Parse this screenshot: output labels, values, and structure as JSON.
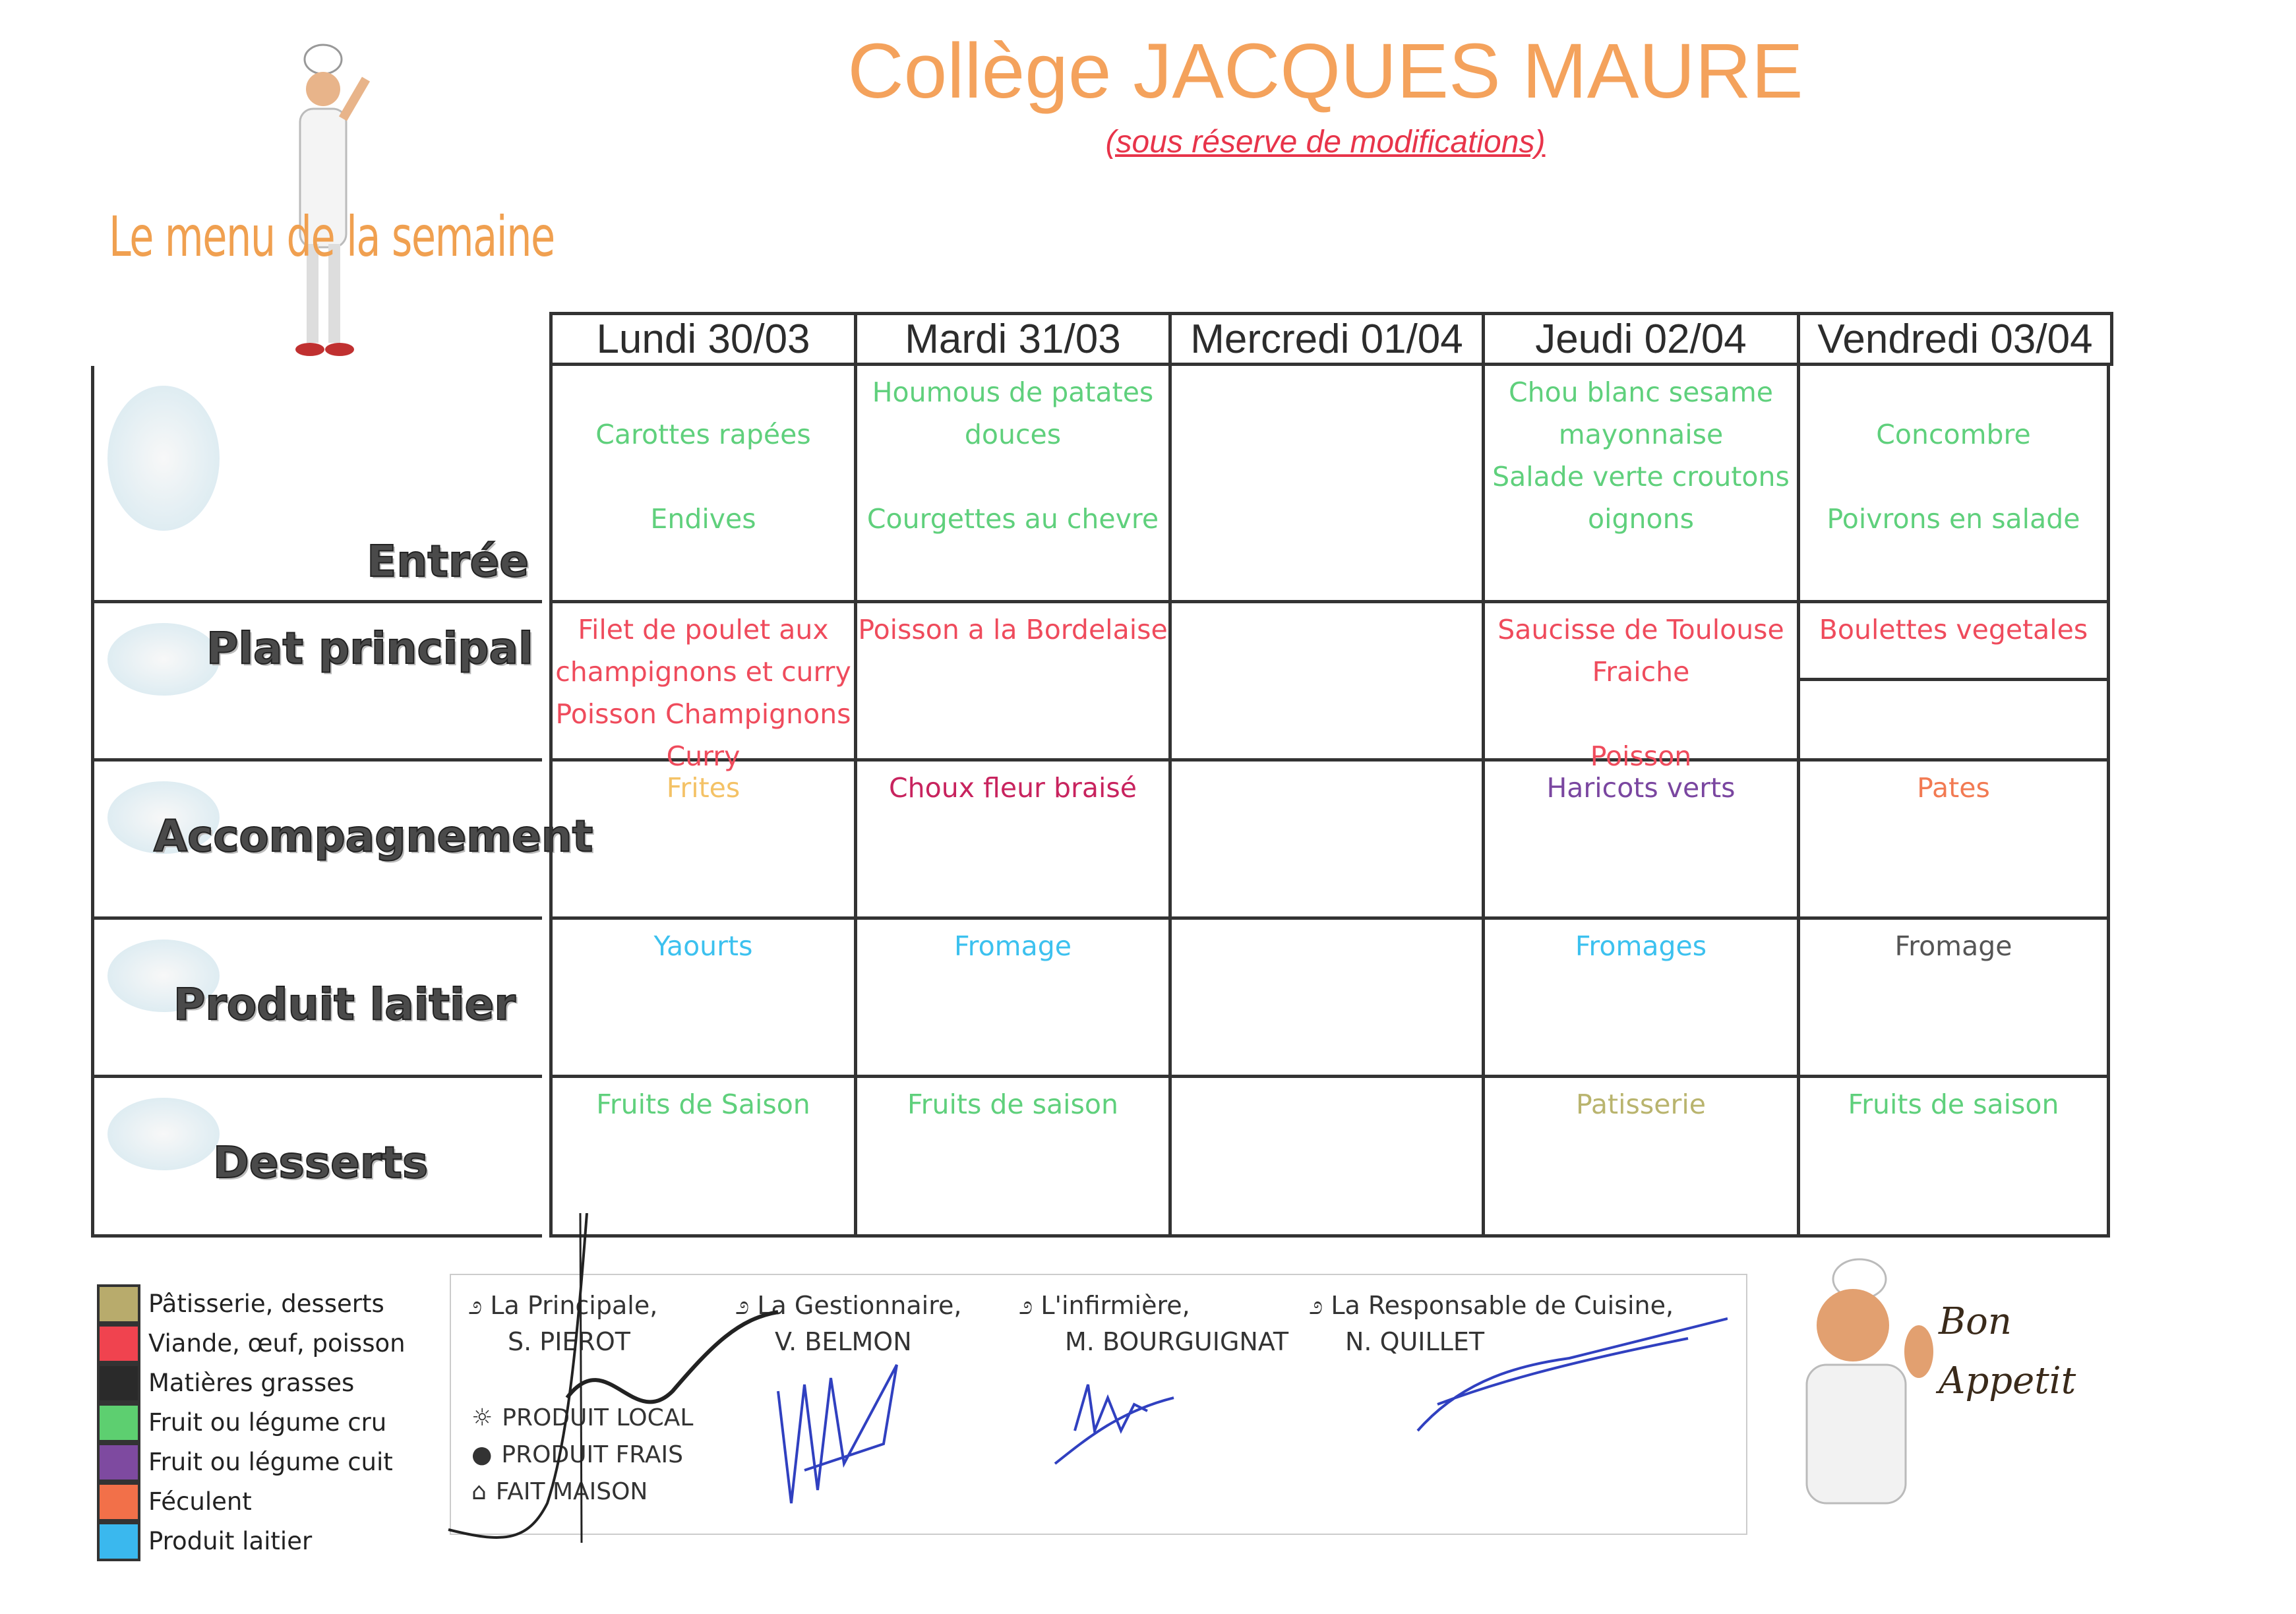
{
  "header": {
    "title": "Collège JACQUES MAURE",
    "subtitle": "(sous réserve de modifications)",
    "menu_title": "Le menu de la semaine"
  },
  "table": {
    "days": [
      "Lundi 30/03",
      "Mardi 31/03",
      "Mercredi 01/04",
      "Jeudi 02/04",
      "Vendredi 03/04"
    ],
    "rows": [
      {
        "label": "Entrée",
        "cells": [
          {
            "lines": [
              "",
              "Carottes rapées",
              "",
              "Endives"
            ],
            "color": "#5fd07c"
          },
          {
            "lines": [
              "Houmous de patates",
              "douces",
              "",
              "Courgettes au chevre"
            ],
            "color": "#5fd07c"
          },
          {
            "lines": [],
            "color": "#5fd07c"
          },
          {
            "lines": [
              "Chou blanc sesame",
              "mayonnaise",
              "Salade verte croutons",
              "oignons"
            ],
            "color": "#5fd07c"
          },
          {
            "lines": [
              "",
              "Concombre",
              "",
              "Poivrons en salade"
            ],
            "color": "#5fd07c"
          }
        ]
      },
      {
        "label": "Plat principal",
        "cells": [
          {
            "lines": [
              "Filet de poulet aux",
              "champignons et curry",
              "Poisson Champignons",
              "Curry"
            ],
            "color": "#ef4b5c"
          },
          {
            "lines": [
              "Poisson a la Bordelaise"
            ],
            "color": "#ef4b5c"
          },
          {
            "lines": [],
            "color": "#ef4b5c"
          },
          {
            "lines": [
              "Saucisse de Toulouse",
              "Fraiche",
              "",
              "Poisson"
            ],
            "color": "#ef4b5c"
          },
          {
            "lines": [
              "Boulettes vegetales"
            ],
            "color": "#ef4b5c"
          }
        ]
      },
      {
        "label": "Accompagnement",
        "cells": [
          {
            "lines": [
              "Frites"
            ],
            "color": "#f4c266"
          },
          {
            "lines": [
              "Choux fleur braisé"
            ],
            "color": "#c8235e"
          },
          {
            "lines": [],
            "color": "#333333"
          },
          {
            "lines": [
              "Haricots verts"
            ],
            "color": "#7a46a0"
          },
          {
            "lines": [
              "Pates"
            ],
            "color": "#f27a52"
          }
        ]
      },
      {
        "label": "Produit laitier",
        "cells": [
          {
            "lines": [
              "Yaourts"
            ],
            "color": "#3cc1ef"
          },
          {
            "lines": [
              "Fromage"
            ],
            "color": "#3cc1ef"
          },
          {
            "lines": [],
            "color": "#3cc1ef"
          },
          {
            "lines": [
              "Fromages"
            ],
            "color": "#3cc1ef"
          },
          {
            "lines": [
              "Fromage"
            ],
            "color": "#555555"
          }
        ]
      },
      {
        "label": "Desserts",
        "cells": [
          {
            "lines": [
              "Fruits de Saison"
            ],
            "color": "#5fd07c"
          },
          {
            "lines": [
              "Fruits de saison"
            ],
            "color": "#5fd07c"
          },
          {
            "lines": [],
            "color": "#5fd07c"
          },
          {
            "lines": [
              "Patisserie"
            ],
            "color": "#b9b46e"
          },
          {
            "lines": [
              "Fruits de saison"
            ],
            "color": "#5fd07c"
          }
        ]
      }
    ]
  },
  "legend": [
    {
      "label": "Pâtisserie, desserts",
      "color": "#b8ab6c"
    },
    {
      "label": "Viande, œuf, poisson",
      "color": "#f0434f"
    },
    {
      "label": "Matières grasses",
      "color": "#2a2a2a"
    },
    {
      "label": "Fruit ou légume cru",
      "color": "#5dcf70"
    },
    {
      "label": "Fruit ou légume cuit",
      "color": "#7e4aa0"
    },
    {
      "label": "Féculent",
      "color": "#f27049"
    },
    {
      "label": "Produit laitier",
      "color": "#3ab8ee"
    }
  ],
  "signatures": [
    {
      "role": "La Principale,",
      "name": "S. PIEROT"
    },
    {
      "role": "La Gestionnaire,",
      "name": "V. BELMON"
    },
    {
      "role": "L'infirmière,",
      "name": "M. BOURGUIGNAT"
    },
    {
      "role": "La Responsable de Cuisine,",
      "name": "N. QUILLET"
    }
  ],
  "markers": [
    {
      "icon": "sun-icon",
      "symbol": "☼",
      "label": "PRODUIT LOCAL"
    },
    {
      "icon": "dot-icon",
      "symbol": "●",
      "label": "PRODUIT FRAIS"
    },
    {
      "icon": "house-icon",
      "symbol": "⌂",
      "label": "FAIT MAISON"
    }
  ],
  "logo": {
    "text": "Bon Appetit"
  }
}
